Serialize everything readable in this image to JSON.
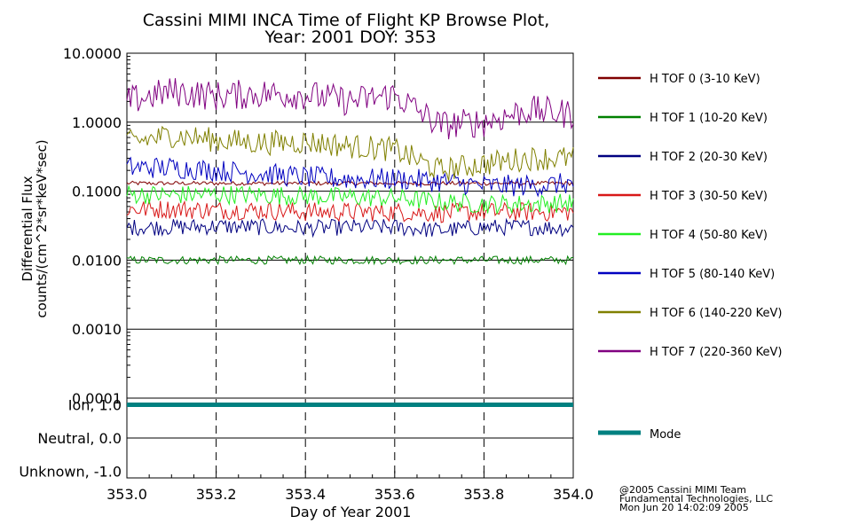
{
  "chart_data": {
    "type": "line",
    "title_line1": "Cassini MIMI INCA Time of Flight KP Browse Plot,",
    "title_line2": "Year: 2001 DOY: 353",
    "xlabel": "Day of Year 2001",
    "ylabel_line1": "Differential Flux",
    "ylabel_line2": "counts/(cm^2*sr*keV*sec)",
    "x_ticks": [
      "353.0",
      "353.2",
      "353.4",
      "353.6",
      "353.8",
      "354.0"
    ],
    "y_ticks": [
      "10.0000",
      "1.0000",
      "0.1000",
      "0.0100",
      "0.0010",
      "0.0001"
    ],
    "xlim": [
      353.0,
      354.0
    ],
    "ylim": [
      0.0001,
      10.0
    ],
    "yscale": "log",
    "grid": true,
    "legend_position": "right",
    "series": [
      {
        "name": "H TOF 0 (3-10 KeV)",
        "color": "#800000",
        "x": [
          353.0,
          353.1,
          353.2,
          353.3,
          353.4,
          353.5,
          353.6,
          353.7,
          353.8,
          353.9,
          354.0
        ],
        "values": [
          0.13,
          0.13,
          0.13,
          0.13,
          0.13,
          0.13,
          0.13,
          0.13,
          0.13,
          0.13,
          0.13
        ]
      },
      {
        "name": "H TOF 1 (10-20 KeV)",
        "color": "#008000",
        "x": [
          353.0,
          353.1,
          353.2,
          353.3,
          353.4,
          353.5,
          353.6,
          353.7,
          353.8,
          353.9,
          354.0
        ],
        "values": [
          0.01,
          0.01,
          0.01,
          0.01,
          0.01,
          0.01,
          0.01,
          0.01,
          0.01,
          0.01,
          0.01
        ]
      },
      {
        "name": "H TOF 2 (20-30 KeV)",
        "color": "#000080",
        "x": [
          353.0,
          353.1,
          353.2,
          353.3,
          353.4,
          353.5,
          353.6,
          353.7,
          353.8,
          353.9,
          354.0
        ],
        "values": [
          0.03,
          0.03,
          0.031,
          0.03,
          0.029,
          0.03,
          0.03,
          0.027,
          0.03,
          0.03,
          0.029
        ]
      },
      {
        "name": "H TOF 3 (30-50 KeV)",
        "color": "#d81818",
        "x": [
          353.0,
          353.1,
          353.2,
          353.3,
          353.4,
          353.5,
          353.6,
          353.7,
          353.8,
          353.9,
          354.0
        ],
        "values": [
          0.055,
          0.055,
          0.053,
          0.053,
          0.05,
          0.05,
          0.05,
          0.048,
          0.05,
          0.05,
          0.05
        ]
      },
      {
        "name": "H TOF 4 (50-80 KeV)",
        "color": "#22ee22",
        "x": [
          353.0,
          353.1,
          353.2,
          353.3,
          353.4,
          353.5,
          353.6,
          353.7,
          353.8,
          353.9,
          354.0
        ],
        "values": [
          0.09,
          0.088,
          0.09,
          0.088,
          0.085,
          0.082,
          0.08,
          0.07,
          0.065,
          0.065,
          0.068
        ]
      },
      {
        "name": "H TOF 5 (80-140 KeV)",
        "color": "#0000c0",
        "x": [
          353.0,
          353.1,
          353.2,
          353.3,
          353.4,
          353.5,
          353.6,
          353.7,
          353.8,
          353.9,
          354.0
        ],
        "values": [
          0.22,
          0.22,
          0.2,
          0.18,
          0.16,
          0.15,
          0.15,
          0.14,
          0.12,
          0.12,
          0.13
        ]
      },
      {
        "name": "H TOF 6 (140-220 KeV)",
        "color": "#808000",
        "x": [
          353.0,
          353.1,
          353.2,
          353.3,
          353.4,
          353.5,
          353.6,
          353.7,
          353.8,
          353.9,
          354.0
        ],
        "values": [
          0.5,
          0.65,
          0.55,
          0.5,
          0.52,
          0.45,
          0.4,
          0.2,
          0.25,
          0.3,
          0.3
        ]
      },
      {
        "name": "H TOF 7 (220-360 KeV)",
        "color": "#800080",
        "x": [
          353.0,
          353.1,
          353.2,
          353.3,
          353.4,
          353.5,
          353.6,
          353.7,
          353.8,
          353.9,
          354.0
        ],
        "values": [
          2.0,
          2.8,
          2.4,
          2.6,
          2.5,
          2.0,
          2.5,
          0.9,
          1.0,
          1.5,
          1.3
        ]
      }
    ],
    "mode_panel": {
      "y_ticks": [
        "Ion, 1.0",
        "Neutral, 0.0",
        "Unknown, -1.0"
      ],
      "ylim": [
        -1.2,
        1.2
      ],
      "series": {
        "name": "Mode",
        "color": "#008080",
        "x": [
          353.0,
          354.0
        ],
        "values": [
          1.0,
          1.0
        ]
      }
    }
  },
  "credits": {
    "line1": "@2005 Cassini MIMI Team",
    "line2": "Fundamental Technologies, LLC",
    "line3": "Mon Jun 20 14:02:09 2005"
  }
}
